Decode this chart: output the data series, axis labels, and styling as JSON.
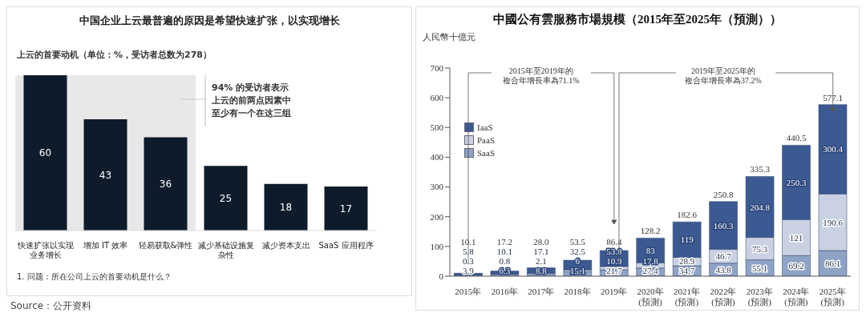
{
  "chart_data": [
    {
      "type": "bar",
      "title": "中国企业上云最普遍的原因是希望快速扩张，以实现增长",
      "subtitle": "上云的首要动机（单位：%，受访者总数为278）",
      "categories": [
        "快速扩张以实现业务增长",
        "增加 IT 效率",
        "轻易获取&弹性",
        "减少基础设施复杂性",
        "减少资本支出",
        "SaaS 应用程序"
      ],
      "values": [
        60,
        43,
        36,
        25,
        18,
        17
      ],
      "color": "#0d1b2a",
      "data_labels": true,
      "bands": [
        {
          "axis": "x",
          "from": "快速扩张以实现业务增长",
          "to": "轻易获取&弹性",
          "label": "94% 的受访者表示上云的前两点因素中至少有一个在这三组",
          "color": "#e8e8e8"
        }
      ],
      "annotations": [
        "1. 问题：所在公司上云的首要动机是什么？",
        "Source：公开资料"
      ]
    },
    {
      "type": "bar",
      "title": "中國公有雲服務市場規模（2015年至2025年（預測））",
      "ylabel": "人民幣十億元",
      "categories": [
        "2015年",
        "2016年",
        "2017年",
        "2018年",
        "2019年",
        "2020年(預測)",
        "2021年(預測)",
        "2022年(預測)",
        "2023年(預測)",
        "2024年(預測)",
        "2025年(預測)"
      ],
      "stacked": true,
      "data_labels": true,
      "legend": "left",
      "series": [
        {
          "name": "SaaS",
          "color": "#8fa3c6",
          "values": [
            3.9,
            6.3,
            8.8,
            15.1,
            21.7,
            27.4,
            34.7,
            43.8,
            55.1,
            69.2,
            86.1
          ]
        },
        {
          "name": "PaaS",
          "color": "#c9d1e3",
          "values": [
            0.3,
            0.8,
            2.1,
            6.0,
            10.9,
            17.8,
            28.9,
            46.7,
            75.3,
            121.0,
            190.6
          ]
        },
        {
          "name": "IaaS",
          "color": "#3c5a92",
          "values": [
            5.8,
            10.1,
            17.1,
            32.5,
            53.8,
            83.0,
            119.0,
            160.3,
            204.8,
            250.3,
            300.4
          ]
        }
      ],
      "totals": [
        "10.1",
        "17.2",
        "28.0",
        "53.5",
        "86.4",
        "128.2",
        "182.6",
        "250.8",
        "335.3",
        "440.5",
        "577.1"
      ],
      "ylim": [
        0,
        700
      ],
      "yticks": [
        0,
        100,
        200,
        300,
        400,
        500,
        600,
        700
      ],
      "annotations": [
        "2015年至2019年的複合年增長率為71.1%",
        "2019年至2025年的複合年增長率為37.2%"
      ]
    }
  ]
}
